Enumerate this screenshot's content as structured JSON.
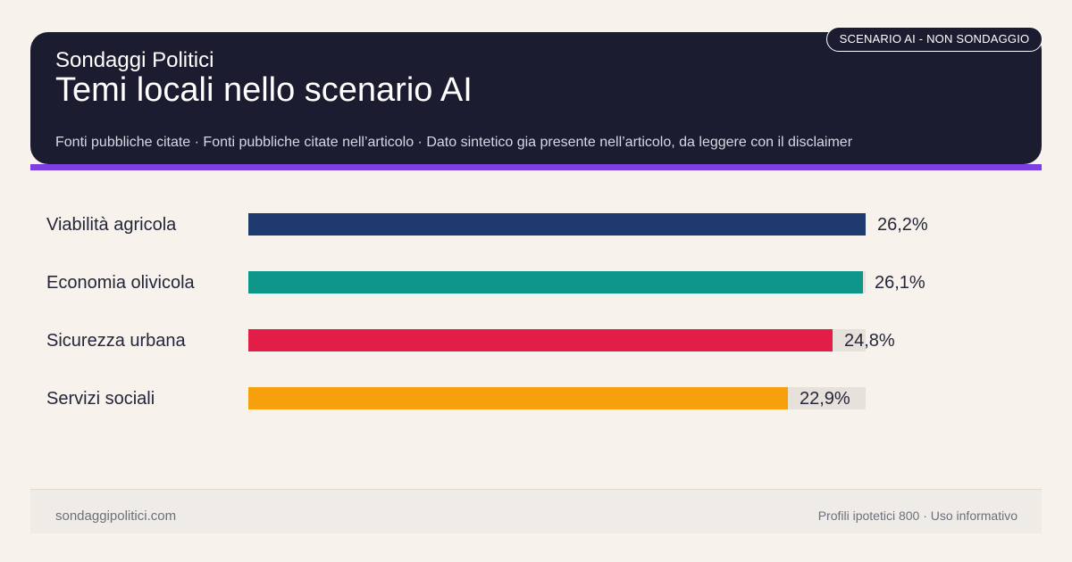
{
  "header": {
    "brand": "Sondaggi Politici",
    "title": "Temi locali nello scenario AI",
    "subtitle": "Fonti pubbliche citate · Fonti pubbliche citate nell’articolo · Dato sintetico gia presente nell’articolo, da leggere con il disclaimer",
    "badge": "SCENARIO AI - NON SONDAGGIO"
  },
  "colors": {
    "header_bg": "#1b1c30",
    "accent": "#7b3fe4",
    "background": "#f7f2ec",
    "track": "#e6e1db"
  },
  "chart_data": {
    "type": "bar",
    "orientation": "horizontal",
    "categories": [
      "Viabilità agricola",
      "Economia olivicola",
      "Sicurezza urbana",
      "Servizi sociali"
    ],
    "values": [
      26.2,
      26.1,
      24.8,
      22.9
    ],
    "value_labels": [
      "26,2%",
      "26,1%",
      "24,8%",
      "22,9%"
    ],
    "colors": [
      "#1e3a6e",
      "#0e968a",
      "#e21d48",
      "#f5a00c"
    ],
    "xlim": [
      0,
      26.2
    ],
    "grid": false
  },
  "footer": {
    "site": "sondaggipolitici.com",
    "note": "Profili ipotetici 800 · Uso informativo"
  }
}
